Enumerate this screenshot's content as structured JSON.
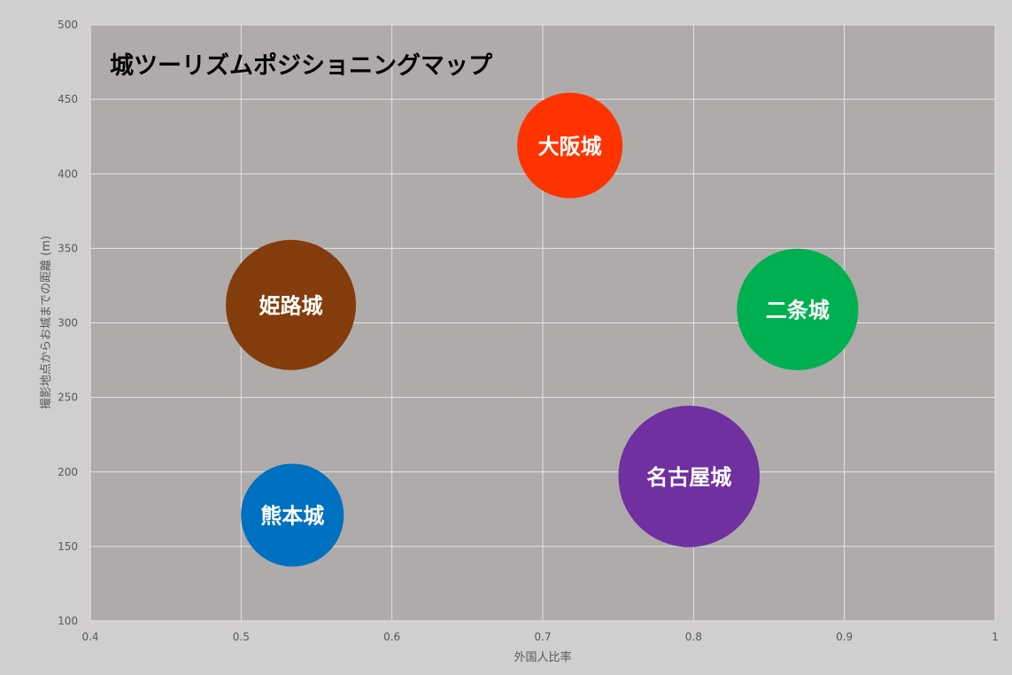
{
  "chart_data": {
    "type": "bubble",
    "title": "城ツーリズムポジショニングマップ",
    "xlabel": "外国人比率",
    "ylabel": "撮影地点からお城までの距離 (m)",
    "xlim": [
      0.4,
      1.0
    ],
    "ylim": [
      100,
      500
    ],
    "xticks": [
      "0.4",
      "0.5",
      "0.6",
      "0.7",
      "0.8",
      "0.9",
      "1"
    ],
    "yticks": [
      "100",
      "150",
      "200",
      "250",
      "300",
      "350",
      "400",
      "450",
      "500"
    ],
    "grid": true,
    "plot_background": "#afabab",
    "points": [
      {
        "label": "大阪城",
        "x": 0.718,
        "y": 419,
        "size": 0.85,
        "color": "#ff3300"
      },
      {
        "label": "姫路城",
        "x": 0.533,
        "y": 312,
        "size": 1.05,
        "color": "#843c0c"
      },
      {
        "label": "二条城",
        "x": 0.869,
        "y": 309,
        "size": 0.98,
        "color": "#00b050"
      },
      {
        "label": "名古屋城",
        "x": 0.797,
        "y": 197,
        "size": 1.14,
        "color": "#7030a0"
      },
      {
        "label": "熊本城",
        "x": 0.534,
        "y": 171,
        "size": 0.83,
        "color": "#0070c0"
      }
    ]
  }
}
